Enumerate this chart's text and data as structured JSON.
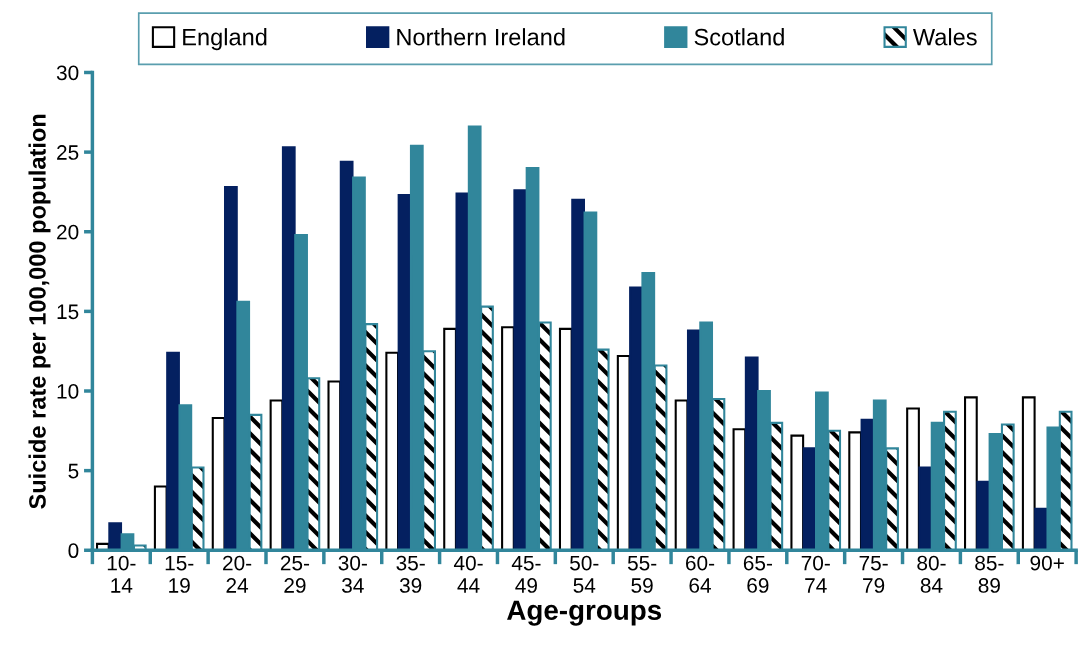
{
  "chart_data": {
    "type": "bar",
    "xlabel": "Age-groups",
    "ylabel": "Suicide rate per 100,000 population",
    "categories": [
      "10-\n14",
      "15-\n19",
      "20-\n24",
      "25-\n29",
      "30-\n34",
      "35-\n39",
      "40-\n44",
      "45-\n49",
      "50-\n54",
      "55-\n59",
      "60-\n64",
      "65-\n69",
      "70-\n74",
      "75-\n79",
      "80-\n84",
      "85-\n89",
      "90+"
    ],
    "series": [
      {
        "name": "England",
        "color": "#ffffff",
        "values": [
          0.4,
          4.0,
          8.3,
          9.4,
          10.6,
          12.4,
          13.9,
          14.0,
          13.9,
          12.2,
          9.4,
          7.6,
          7.2,
          7.4,
          8.9,
          9.6,
          9.6
        ]
      },
      {
        "name": "Northern Ireland",
        "color": "#042060",
        "values": [
          1.7,
          12.4,
          22.8,
          25.3,
          24.4,
          22.3,
          22.4,
          22.6,
          22.0,
          16.5,
          13.8,
          12.1,
          6.4,
          8.2,
          5.2,
          4.3,
          2.6
        ]
      },
      {
        "name": "Scotland",
        "color": "#31869b",
        "values": [
          1.0,
          9.1,
          15.6,
          19.8,
          23.4,
          25.4,
          26.6,
          24.0,
          21.2,
          17.4,
          14.3,
          10.0,
          9.9,
          9.4,
          8.0,
          7.3,
          7.7
        ]
      },
      {
        "name": "Wales",
        "color": "#31869b",
        "values": [
          0.3,
          5.2,
          8.5,
          10.8,
          14.2,
          12.5,
          15.3,
          14.3,
          12.6,
          11.6,
          9.5,
          8.0,
          7.5,
          6.4,
          8.7,
          7.9,
          8.7
        ]
      }
    ],
    "ylim": [
      0,
      30
    ],
    "yticks": [
      0,
      5,
      10,
      15,
      20,
      25,
      30
    ],
    "legend": "top"
  }
}
